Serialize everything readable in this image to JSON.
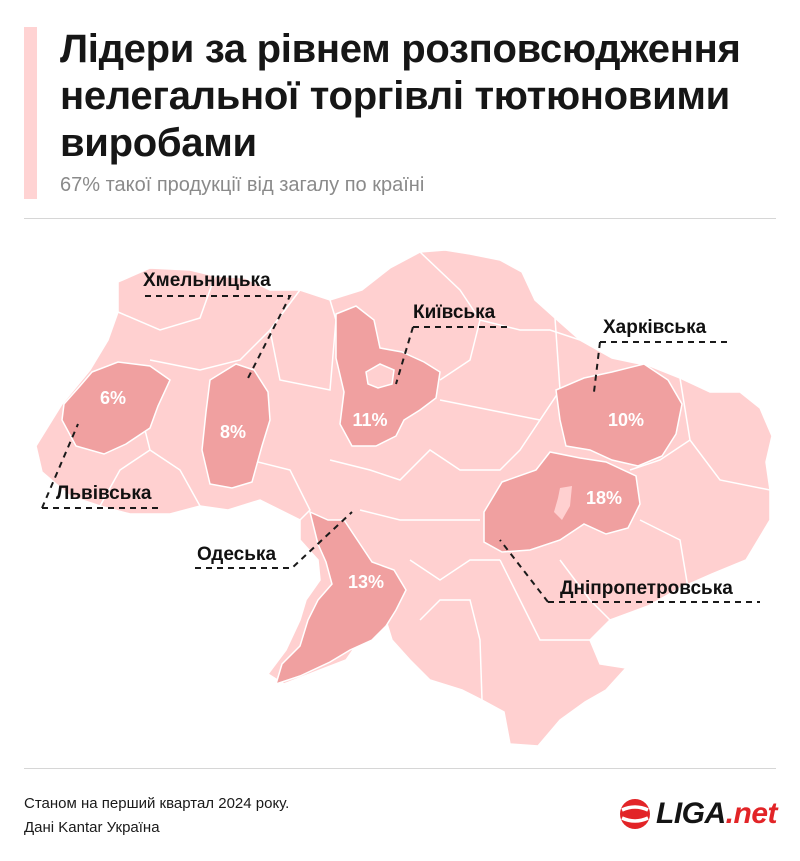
{
  "header": {
    "title": "Лідери за рівнем розповсюдження нелегальної торгівлі тютюновими виробами",
    "subtitle": "67% такої продукції від загалу по країні"
  },
  "map": {
    "highlight_color": "#f0a0a0",
    "base_color": "#ffd0d0",
    "border_color": "#ffffff",
    "regions": [
      {
        "name": "Хмельницька",
        "value": "8%"
      },
      {
        "name": "Київська",
        "value": "11%"
      },
      {
        "name": "Харківська",
        "value": "10%"
      },
      {
        "name": "Львівська",
        "value": "6%"
      },
      {
        "name": "Одеська",
        "value": "13%"
      },
      {
        "name": "Дніпропетровська",
        "value": "18%"
      }
    ]
  },
  "footer": {
    "note_line1": "Станом на перший квартал 2024 року.",
    "note_line2": "Дані Kantar Україна",
    "logo_main": "LIGA",
    "logo_suffix": ".net",
    "logo_color": "#e22427"
  }
}
